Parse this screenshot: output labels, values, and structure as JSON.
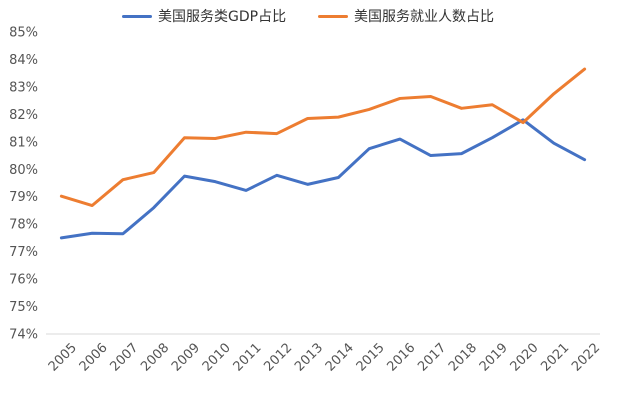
{
  "chart_data": {
    "type": "line",
    "title": "",
    "xlabel": "",
    "ylabel": "",
    "x": [
      "2005",
      "2006",
      "2007",
      "2008",
      "2009",
      "2010",
      "2011",
      "2012",
      "2013",
      "2014",
      "2015",
      "2016",
      "2017",
      "2018",
      "2019",
      "2020",
      "2021",
      "2022"
    ],
    "ylim": [
      74,
      85
    ],
    "yticks": [
      "74%",
      "75%",
      "76%",
      "77%",
      "78%",
      "79%",
      "80%",
      "81%",
      "82%",
      "83%",
      "84%",
      "85%"
    ],
    "grid": false,
    "legend_position": "top",
    "series": [
      {
        "name": "美国服务类GDP占比",
        "color": "#4472C4",
        "values": [
          77.5,
          77.67,
          77.65,
          78.6,
          79.75,
          79.55,
          79.23,
          79.78,
          79.45,
          79.7,
          80.75,
          81.1,
          80.5,
          80.57,
          81.15,
          81.8,
          80.95,
          80.35
        ]
      },
      {
        "name": "美国服务就业人数占比",
        "color": "#ED7D31",
        "values": [
          79.02,
          78.68,
          79.62,
          79.88,
          81.15,
          81.12,
          81.35,
          81.3,
          81.85,
          81.9,
          82.18,
          82.58,
          82.65,
          82.22,
          82.35,
          81.7,
          82.75,
          83.65
        ]
      }
    ]
  }
}
